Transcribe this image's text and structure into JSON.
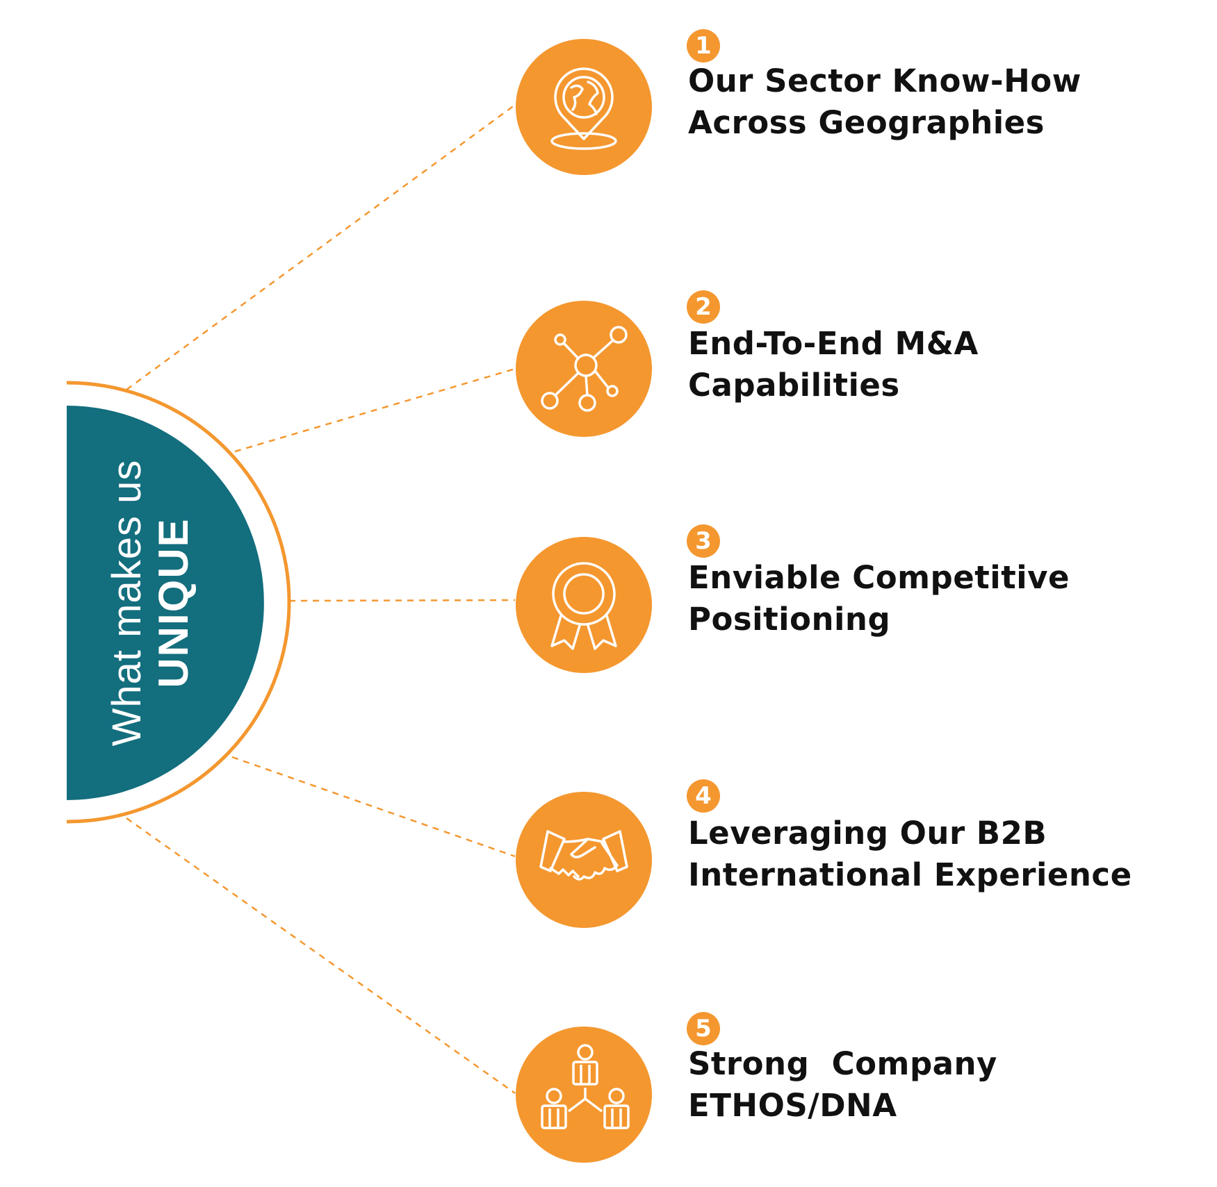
{
  "hub": {
    "line1": "What makes us",
    "line2": "UNIQUE"
  },
  "items": [
    {
      "number": "1",
      "line1": "Our Sector Know-How",
      "line2": "Across Geographies",
      "icon": "globe-location-pin-icon"
    },
    {
      "number": "2",
      "line1": "End-To-End M&A",
      "line2": "Capabilities",
      "icon": "network-nodes-icon"
    },
    {
      "number": "3",
      "line1": "Enviable Competitive",
      "line2": "Positioning",
      "icon": "award-ribbon-icon"
    },
    {
      "number": "4",
      "line1": "Leveraging Our B2B",
      "line2": "International Experience",
      "icon": "handshake-icon"
    },
    {
      "number": "5",
      "line1": "Strong  Company",
      "line2": "ETHOS/DNA",
      "icon": "team-hierarchy-icon"
    }
  ],
  "colors": {
    "orange": "#f4972f",
    "teal": "#136e7e",
    "text": "#111111"
  }
}
